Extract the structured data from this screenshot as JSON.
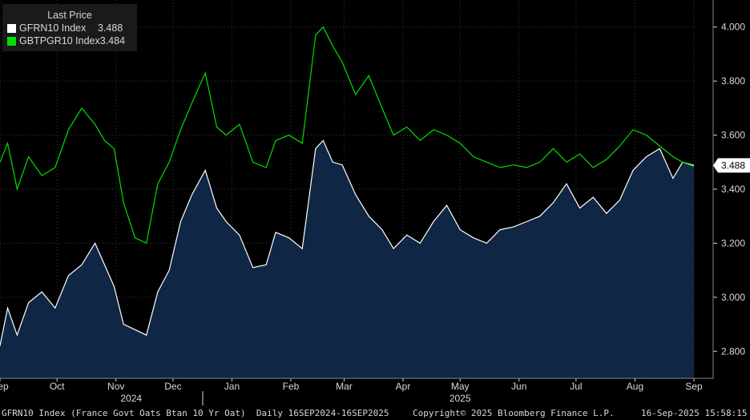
{
  "legend": {
    "title": "Last Price",
    "rows": [
      {
        "name": "GFRN10 Index",
        "value": "3.488",
        "color": "#ffffff"
      },
      {
        "name": "GBTPGR10 Index",
        "value": "3.484",
        "color": "#00e000"
      }
    ]
  },
  "last_value_tag": "3.488",
  "footer": {
    "description": "GFRN10 Index (France Govt Oats Btan 10 Yr Oat)  Daily 16SEP2024-16SEP2025",
    "copyright": "Copyright© 2025 Bloomberg Finance L.P.",
    "timestamp": "16-Sep-2025 15:58:15"
  },
  "colors": {
    "background": "#000000",
    "area_fill": "#0f2744",
    "france_line": "#ffffff",
    "italy_line": "#00e000",
    "grid": "#3a3a3a",
    "axis_text": "#d8d8d8"
  },
  "chart_data": {
    "type": "area",
    "title": "",
    "ylim": [
      2.7,
      4.1
    ],
    "yticks": [
      "4.000",
      "3.800",
      "3.600",
      "3.400",
      "3.200",
      "3.000",
      "2.800"
    ],
    "x_range": [
      "2024-09-16",
      "2025-09-16"
    ],
    "x_month_labels": [
      {
        "label": "Sep",
        "date": "2024-09-16"
      },
      {
        "label": "Oct",
        "date": "2024-10-16"
      },
      {
        "label": "Nov",
        "date": "2024-11-16"
      },
      {
        "label": "Dec",
        "date": "2024-12-16"
      },
      {
        "label": "Jan",
        "date": "2025-01-16"
      },
      {
        "label": "Feb",
        "date": "2025-02-16"
      },
      {
        "label": "Mar",
        "date": "2025-03-16"
      },
      {
        "label": "Apr",
        "date": "2025-04-16"
      },
      {
        "label": "May",
        "date": "2025-05-16"
      },
      {
        "label": "Jun",
        "date": "2025-06-16"
      },
      {
        "label": "Jul",
        "date": "2025-07-16"
      },
      {
        "label": "Aug",
        "date": "2025-08-16"
      },
      {
        "label": "Sep",
        "date": "2025-09-16"
      }
    ],
    "x_year_labels": [
      {
        "label": "2024",
        "date": "2024-11-24"
      },
      {
        "label": "2025",
        "date": "2025-05-16"
      }
    ],
    "grid": true,
    "legend_position": "top-left",
    "series": [
      {
        "name": "GFRN10 Index",
        "style": "area",
        "x": [
          "2024-09-16",
          "2024-09-20",
          "2024-09-25",
          "2024-10-01",
          "2024-10-08",
          "2024-10-15",
          "2024-10-22",
          "2024-10-29",
          "2024-11-05",
          "2024-11-10",
          "2024-11-15",
          "2024-11-20",
          "2024-11-26",
          "2024-12-02",
          "2024-12-08",
          "2024-12-14",
          "2024-12-20",
          "2024-12-26",
          "2025-01-02",
          "2025-01-08",
          "2025-01-13",
          "2025-01-20",
          "2025-01-27",
          "2025-02-03",
          "2025-02-08",
          "2025-02-15",
          "2025-02-22",
          "2025-03-01",
          "2025-03-05",
          "2025-03-10",
          "2025-03-15",
          "2025-03-22",
          "2025-03-29",
          "2025-04-05",
          "2025-04-11",
          "2025-04-18",
          "2025-04-25",
          "2025-05-02",
          "2025-05-09",
          "2025-05-16",
          "2025-05-23",
          "2025-05-30",
          "2025-06-06",
          "2025-06-13",
          "2025-06-20",
          "2025-06-27",
          "2025-07-04",
          "2025-07-11",
          "2025-07-18",
          "2025-07-25",
          "2025-08-01",
          "2025-08-08",
          "2025-08-15",
          "2025-08-22",
          "2025-08-29",
          "2025-09-05",
          "2025-09-10",
          "2025-09-16"
        ],
        "y": [
          2.82,
          2.96,
          2.86,
          2.98,
          3.02,
          2.96,
          3.08,
          3.12,
          3.2,
          3.12,
          3.04,
          2.9,
          2.88,
          2.86,
          3.02,
          3.1,
          3.28,
          3.38,
          3.47,
          3.33,
          3.28,
          3.23,
          3.11,
          3.12,
          3.24,
          3.22,
          3.18,
          3.55,
          3.58,
          3.5,
          3.49,
          3.38,
          3.3,
          3.25,
          3.18,
          3.23,
          3.2,
          3.28,
          3.34,
          3.25,
          3.22,
          3.2,
          3.25,
          3.26,
          3.28,
          3.3,
          3.35,
          3.42,
          3.33,
          3.37,
          3.31,
          3.36,
          3.47,
          3.52,
          3.55,
          3.44,
          3.5,
          3.488
        ]
      },
      {
        "name": "GBTPGR10 Index",
        "style": "line",
        "x": [
          "2024-09-16",
          "2024-09-20",
          "2024-09-25",
          "2024-10-01",
          "2024-10-08",
          "2024-10-15",
          "2024-10-22",
          "2024-10-29",
          "2024-11-05",
          "2024-11-10",
          "2024-11-15",
          "2024-11-20",
          "2024-11-26",
          "2024-12-02",
          "2024-12-08",
          "2024-12-14",
          "2024-12-20",
          "2024-12-26",
          "2025-01-02",
          "2025-01-08",
          "2025-01-13",
          "2025-01-20",
          "2025-01-27",
          "2025-02-03",
          "2025-02-08",
          "2025-02-15",
          "2025-02-22",
          "2025-03-01",
          "2025-03-05",
          "2025-03-10",
          "2025-03-15",
          "2025-03-22",
          "2025-03-29",
          "2025-04-05",
          "2025-04-11",
          "2025-04-18",
          "2025-04-25",
          "2025-05-02",
          "2025-05-09",
          "2025-05-16",
          "2025-05-23",
          "2025-05-30",
          "2025-06-06",
          "2025-06-13",
          "2025-06-20",
          "2025-06-27",
          "2025-07-04",
          "2025-07-11",
          "2025-07-18",
          "2025-07-25",
          "2025-08-01",
          "2025-08-08",
          "2025-08-15",
          "2025-08-22",
          "2025-08-29",
          "2025-09-05",
          "2025-09-10",
          "2025-09-16"
        ],
        "y": [
          3.5,
          3.57,
          3.4,
          3.52,
          3.45,
          3.48,
          3.62,
          3.7,
          3.64,
          3.58,
          3.55,
          3.35,
          3.22,
          3.2,
          3.42,
          3.5,
          3.62,
          3.72,
          3.83,
          3.63,
          3.6,
          3.64,
          3.5,
          3.48,
          3.58,
          3.6,
          3.57,
          3.97,
          4.0,
          3.93,
          3.87,
          3.75,
          3.82,
          3.7,
          3.6,
          3.63,
          3.58,
          3.62,
          3.6,
          3.57,
          3.52,
          3.5,
          3.48,
          3.49,
          3.48,
          3.5,
          3.55,
          3.5,
          3.53,
          3.48,
          3.51,
          3.56,
          3.62,
          3.6,
          3.56,
          3.52,
          3.5,
          3.484
        ]
      }
    ]
  }
}
